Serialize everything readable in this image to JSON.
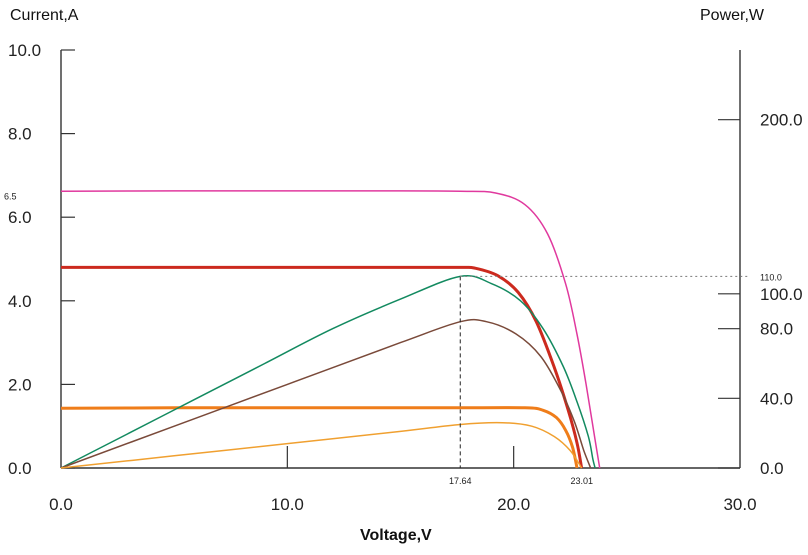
{
  "chart_data": {
    "type": "line",
    "title": "",
    "xlabel": "Voltage,V",
    "ylabel_left": "Current,A",
    "ylabel_right": "Power,W",
    "xlim": [
      0,
      30
    ],
    "ylim_left": [
      0,
      10
    ],
    "ylim_right": [
      0,
      240
    ],
    "x_ticks": [
      "0.0",
      "10.0",
      "20.0",
      "30.0"
    ],
    "y_left_ticks": [
      "0.0",
      "2.0",
      "4.0",
      "6.0",
      "8.0",
      "10.0"
    ],
    "y_right_ticks": [
      {
        "value": 0,
        "label": "0.0"
      },
      {
        "value": 40,
        "label": "40.0"
      },
      {
        "value": 80,
        "label": "80.0"
      },
      {
        "value": 100,
        "label": "100.0"
      },
      {
        "value": 200,
        "label": "200.0"
      }
    ],
    "grid": false,
    "annotations": {
      "isc_label": "6.5",
      "pmax_label": "110.0",
      "vmp_label": "17.64",
      "voc_label": "23.01",
      "vmp": 17.64,
      "pmax": 110.0,
      "isc": 6.5
    },
    "series": [
      {
        "axis": "left",
        "color": "#e0399e",
        "points": [
          [
            0,
            6.62
          ],
          [
            5,
            6.63
          ],
          [
            10,
            6.63
          ],
          [
            15,
            6.63
          ],
          [
            17.64,
            6.62
          ],
          [
            19.2,
            6.58
          ],
          [
            20.5,
            6.3
          ],
          [
            21.5,
            5.6
          ],
          [
            22.3,
            4.4
          ],
          [
            22.8,
            3.2
          ],
          [
            23.2,
            2.0
          ],
          [
            23.5,
            1.0
          ],
          [
            23.8,
            0.0
          ]
        ]
      },
      {
        "axis": "left",
        "color": "#cc2a1e",
        "points": [
          [
            0,
            4.8
          ],
          [
            5,
            4.8
          ],
          [
            10,
            4.8
          ],
          [
            15,
            4.8
          ],
          [
            17.64,
            4.8
          ],
          [
            18.3,
            4.78
          ],
          [
            19.3,
            4.6
          ],
          [
            20.2,
            4.2
          ],
          [
            21.0,
            3.5
          ],
          [
            21.8,
            2.4
          ],
          [
            22.4,
            1.4
          ],
          [
            22.8,
            0.6
          ],
          [
            23.0,
            0.0
          ]
        ]
      },
      {
        "axis": "left",
        "color": "#ef7d1a",
        "points": [
          [
            0,
            1.43
          ],
          [
            5,
            1.44
          ],
          [
            10,
            1.44
          ],
          [
            15,
            1.44
          ],
          [
            17.64,
            1.44
          ],
          [
            20.5,
            1.44
          ],
          [
            21.3,
            1.38
          ],
          [
            21.9,
            1.2
          ],
          [
            22.3,
            0.9
          ],
          [
            22.6,
            0.5
          ],
          [
            22.8,
            0.0
          ]
        ]
      },
      {
        "axis": "right",
        "color": "#138a60",
        "points": [
          [
            0,
            0
          ],
          [
            3,
            20
          ],
          [
            6,
            40
          ],
          [
            9,
            60
          ],
          [
            12,
            80
          ],
          [
            15,
            97
          ],
          [
            17.64,
            110
          ],
          [
            19.0,
            106
          ],
          [
            20.3,
            96
          ],
          [
            21.3,
            80
          ],
          [
            22.2,
            58
          ],
          [
            22.8,
            38
          ],
          [
            23.3,
            18
          ],
          [
            23.5,
            5
          ],
          [
            23.6,
            0
          ]
        ]
      },
      {
        "axis": "right",
        "color": "#7a4a3a",
        "points": [
          [
            0,
            0
          ],
          [
            5,
            24
          ],
          [
            10,
            48
          ],
          [
            15,
            72
          ],
          [
            17.64,
            84
          ],
          [
            18.8,
            84
          ],
          [
            20.1,
            77
          ],
          [
            21.2,
            64
          ],
          [
            22.1,
            44
          ],
          [
            22.7,
            26
          ],
          [
            23.1,
            10
          ],
          [
            23.4,
            0
          ]
        ]
      },
      {
        "axis": "right",
        "color": "#f0a030",
        "points": [
          [
            0,
            0
          ],
          [
            5,
            7
          ],
          [
            10,
            14
          ],
          [
            15,
            21
          ],
          [
            17.64,
            25
          ],
          [
            19.5,
            26
          ],
          [
            20.8,
            24
          ],
          [
            21.8,
            18
          ],
          [
            22.5,
            10
          ],
          [
            23.0,
            0
          ]
        ]
      }
    ]
  }
}
